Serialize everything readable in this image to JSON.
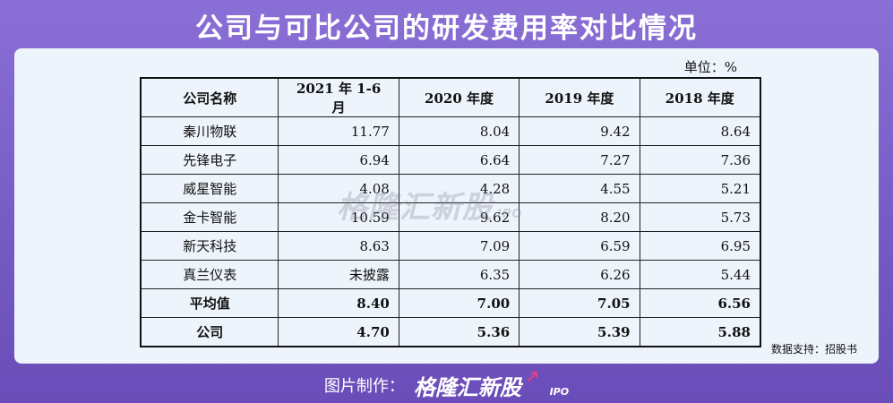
{
  "header": {
    "title": "公司与可比公司的研发费用率对比情况"
  },
  "panel": {
    "unit": "单位：%",
    "source": "数据支持：招股书",
    "watermark": {
      "text": "格隆汇新股",
      "ipo": "IPO"
    }
  },
  "table": {
    "headers": [
      "公司名称",
      "2021 年 1-6 月",
      "2020 年度",
      "2019 年度",
      "2018 年度"
    ],
    "rows": [
      {
        "name": "秦川物联",
        "values": [
          "11.77",
          "8.04",
          "9.42",
          "8.64"
        ]
      },
      {
        "name": "先锋电子",
        "values": [
          "6.94",
          "6.64",
          "7.27",
          "7.36"
        ]
      },
      {
        "name": "威星智能",
        "values": [
          "4.08",
          "4.28",
          "4.55",
          "5.21"
        ]
      },
      {
        "name": "金卡智能",
        "values": [
          "10.59",
          "9.62",
          "8.20",
          "5.73"
        ]
      },
      {
        "name": "新天科技",
        "values": [
          "8.63",
          "7.09",
          "6.59",
          "6.95"
        ]
      },
      {
        "name": "真兰仪表",
        "values": [
          "未披露",
          "6.35",
          "6.26",
          "5.44"
        ]
      },
      {
        "name": "平均值",
        "values": [
          "8.40",
          "7.00",
          "7.05",
          "6.56"
        ],
        "bold": true
      },
      {
        "name": "公司",
        "values": [
          "4.70",
          "5.36",
          "5.39",
          "5.88"
        ],
        "bold": true
      }
    ]
  },
  "footer": {
    "label": "图片制作：",
    "logo": "格隆汇新股",
    "ipo": "IPO"
  },
  "colors": {
    "background": "#7a5fc8",
    "panel": "#eef4fb",
    "accent_arrow": "#e0408a"
  }
}
